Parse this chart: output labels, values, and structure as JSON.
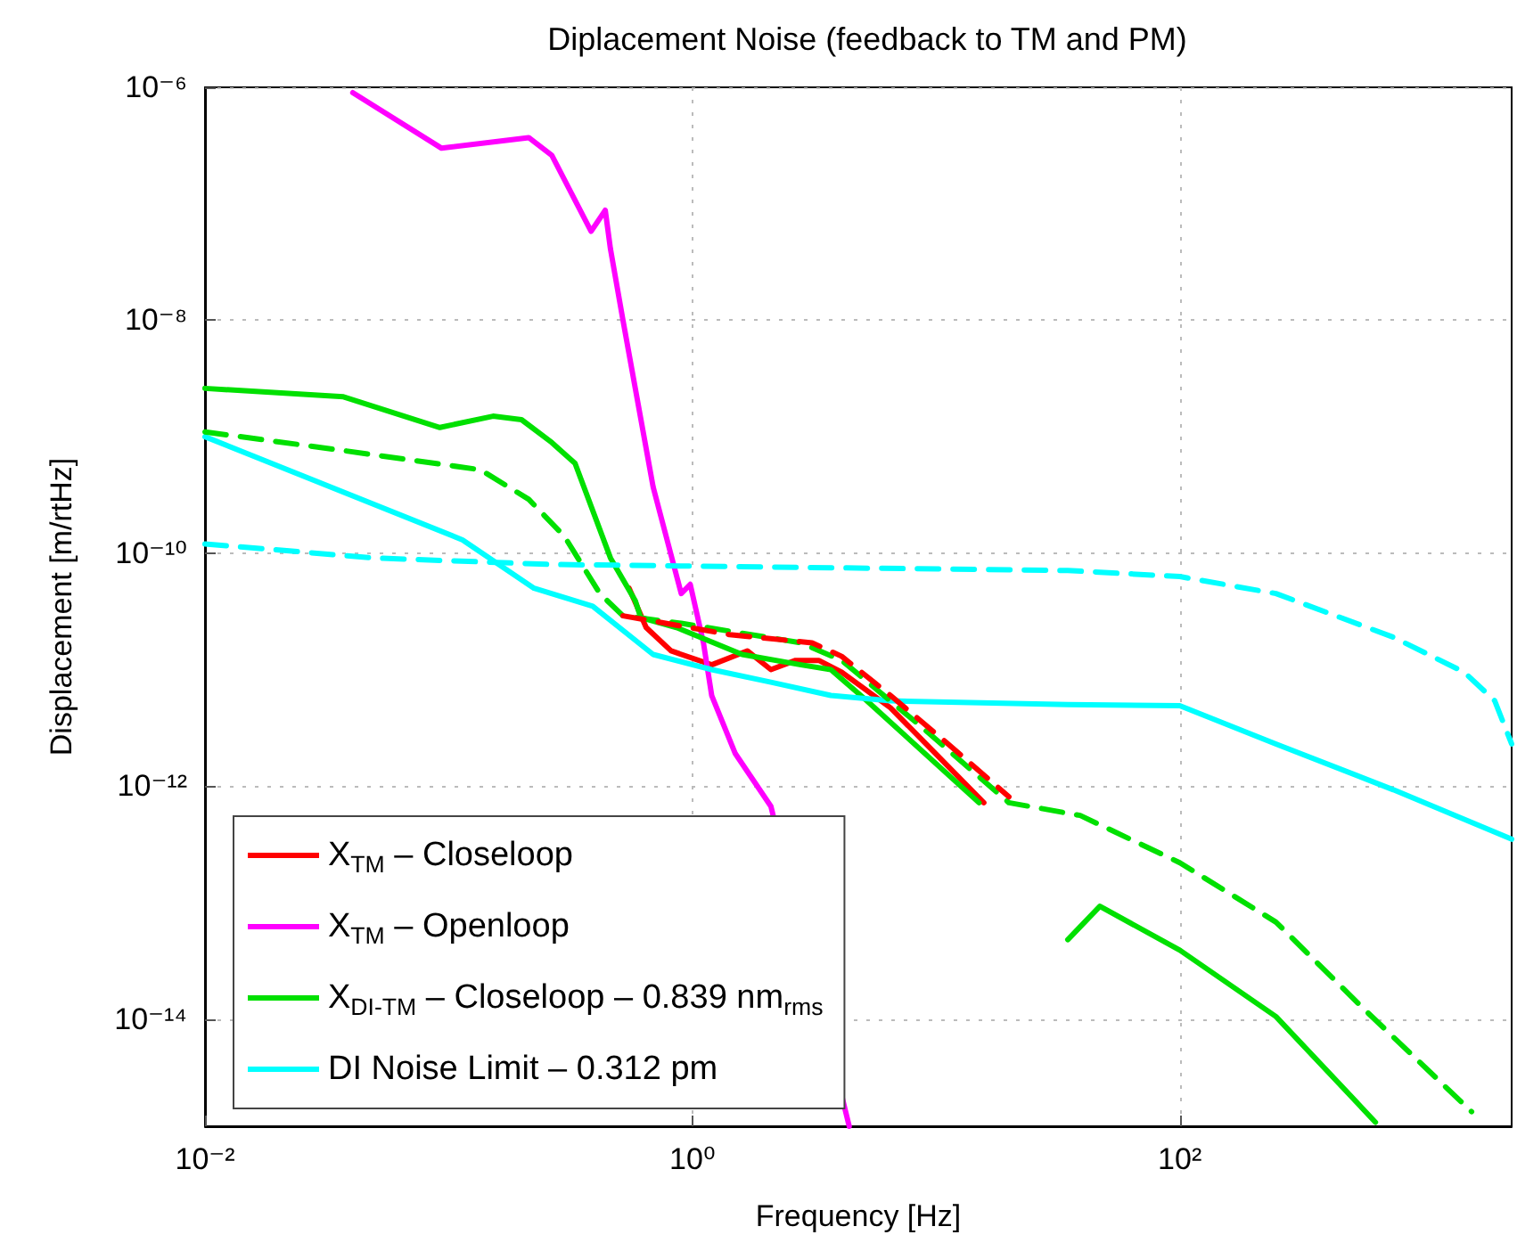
{
  "chart_data": {
    "type": "line",
    "title": "Diplacement Noise (feedback to TM and PM)",
    "xlabel": "Frequency [Hz]",
    "ylabel": "Displacement [m/rtHz]",
    "log": "xy",
    "grid": true,
    "legend": "lower left",
    "marker": "none",
    "line_style": "solid",
    "xlim": [
      0.01,
      2300
    ],
    "ylim": [
      1.2e-15,
      1e-06
    ],
    "xticks": [
      {
        "value": 0.01,
        "label": "10⁻²"
      },
      {
        "value": 1,
        "label": "10⁰"
      },
      {
        "value": 100,
        "label": "10²"
      }
    ],
    "yticks": [
      {
        "value": 1e-14,
        "label": "10⁻¹⁴"
      },
      {
        "value": 1e-12,
        "label": "10⁻¹²"
      },
      {
        "value": 1e-10,
        "label": "10⁻¹⁰"
      },
      {
        "value": 1e-08,
        "label": "10⁻⁸"
      },
      {
        "value": 1e-06,
        "label": "10⁻⁶"
      }
    ],
    "series": [
      {
        "name": "X$_{TM}$ – Closeloop",
        "color": "#ff0000",
        "x": [
          0.55,
          0.646,
          0.817,
          1.2,
          1.68,
          2.1,
          2.65,
          3.3,
          4.1,
          6.5,
          15.7
        ],
        "values": [
          5e-11,
          2.3e-11,
          1.45e-11,
          1.1e-11,
          1.45e-11,
          1e-11,
          1.2e-11,
          1.2e-11,
          9.5e-12,
          4.7e-12,
          7.2e-13
        ]
      },
      {
        "name": "X$_{TM}$ – Openloop",
        "color": "#ff00ff",
        "x": [
          0.0404,
          0.0935,
          0.213,
          0.265,
          0.384,
          0.439,
          0.461,
          0.519,
          0.69,
          0.9,
          0.98,
          1.11,
          1.2,
          1.5,
          2.1,
          4.4
        ],
        "values": [
          9e-07,
          3e-07,
          3.7e-07,
          2.6e-07,
          5.8e-08,
          8.8e-08,
          4.1e-08,
          1e-08,
          3.7e-10,
          4.5e-11,
          5.4e-11,
          1.7e-11,
          6e-12,
          1.9e-12,
          6.7e-13,
          1.2e-15
        ]
      },
      {
        "name": "X$_{DI-TM}$ – Closeloop – 0.839 nm$_{rms}$",
        "color": "#00e000",
        "x": [
          0.01,
          0.037,
          0.092,
          0.152,
          0.199,
          0.265,
          0.33,
          0.461,
          0.583,
          0.614,
          0.86,
          1.6,
          2.79,
          3.7,
          5.2,
          15.0,
          25,
          34.7,
          47,
          100,
          248,
          635
        ],
        "values": [
          2.6e-09,
          2.2e-09,
          1.2e-09,
          1.5e-09,
          1.4e-09,
          8.9e-10,
          5.9e-10,
          9.1e-11,
          3.9e-11,
          2.8e-11,
          2.3e-11,
          1.35e-11,
          1.1e-11,
          1e-11,
          5.4e-12,
          7.2e-13,
          null,
          4.8e-14,
          9.3e-14,
          3.9e-14,
          1.05e-14,
          1.3e-15
        ]
      },
      {
        "name": "DI Noise Limit – 0.312 pm",
        "color": "#00ffff",
        "x": [
          0.01,
          0.114,
          0.224,
          0.39,
          0.69,
          1.2,
          2.1,
          3.7,
          6.5,
          34.7,
          100,
          248,
          752,
          2300
        ],
        "values": [
          1e-09,
          1.3e-10,
          5e-11,
          3.5e-11,
          1.35e-11,
          1e-11,
          7.8e-12,
          6e-12,
          5.4e-12,
          5e-12,
          4.9e-12,
          2.3e-12,
          9.3e-13,
          3.5e-13
        ]
      },
      {
        "color": "#00e000",
        "line_style": "dashed",
        "x": [
          0.01,
          0.037,
          0.135,
          0.213,
          0.298,
          0.417,
          0.519,
          0.9,
          2.79,
          4.1,
          8.6,
          19.9,
          39,
          100,
          248,
          574,
          1575
        ],
        "values": [
          1.1e-09,
          7.6e-10,
          5.2e-10,
          2.9e-10,
          1.4e-10,
          4.5e-11,
          2.9e-11,
          2.5e-11,
          1.7e-11,
          1.2e-11,
          3.3e-12,
          7.2e-13,
          5.6e-13,
          2.2e-13,
          6.8e-14,
          1.2e-14,
          1.6e-15
        ]
      },
      {
        "color": "#ff0000",
        "line_style": "dashed",
        "x": [
          0.519,
          1.42,
          3.1,
          4.1,
          6.5,
          11.2,
          19.9
        ],
        "values": [
          2.9e-11,
          2e-11,
          1.7e-11,
          1.3e-11,
          6e-12,
          2.3e-12,
          8.1e-13
        ]
      },
      {
        "color": "#00ffff",
        "line_style": "dashed",
        "x": [
          0.01,
          0.049,
          0.265,
          34.7,
          100,
          248,
          752,
          1470,
          1960,
          2300
        ],
        "values": [
          1.2e-10,
          9.1e-11,
          8e-11,
          7.1e-11,
          6.3e-11,
          4.5e-11,
          1.9e-11,
          9.5e-12,
          5.4e-12,
          2.3e-12
        ]
      }
    ]
  }
}
